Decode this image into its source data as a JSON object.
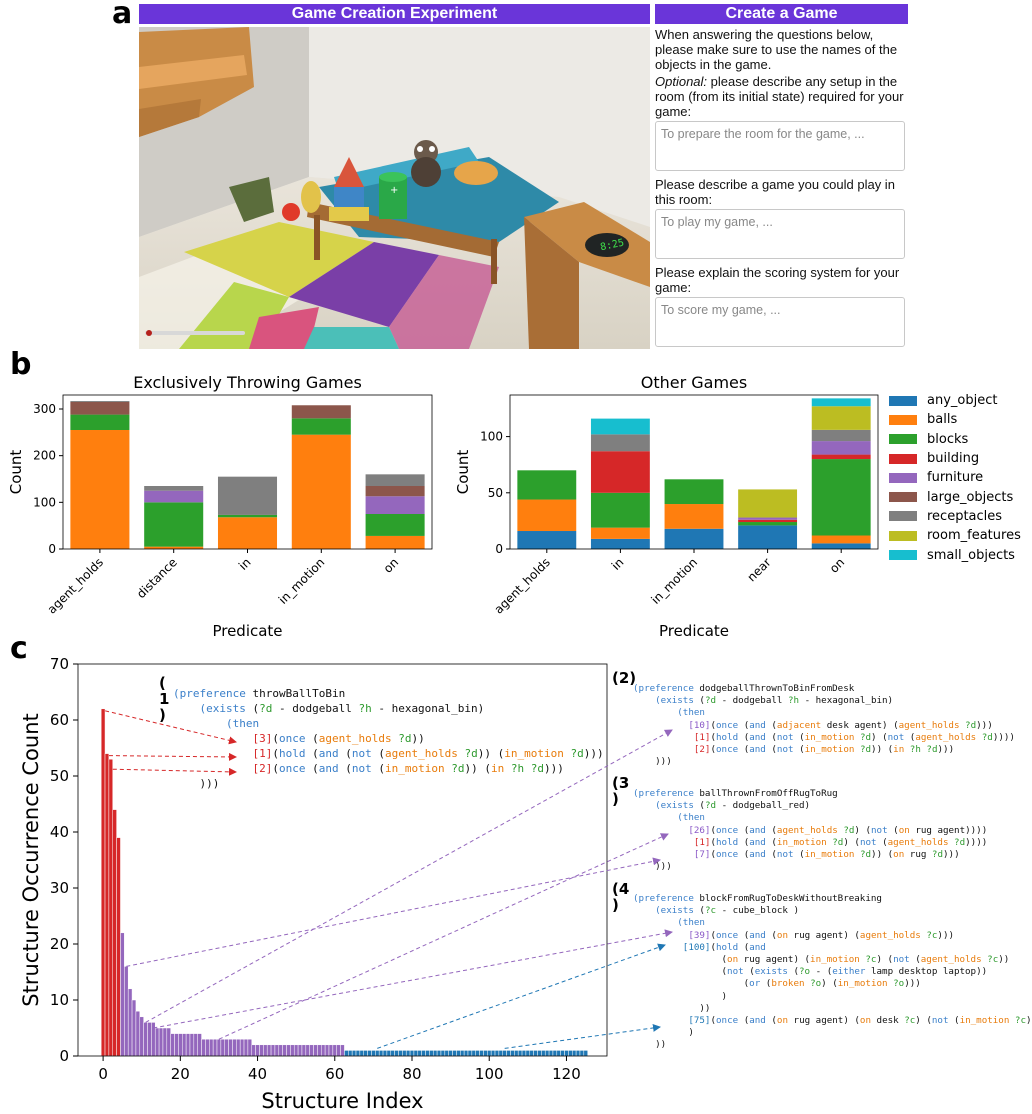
{
  "panel_letters": {
    "a": "a",
    "b": "b",
    "c": "c"
  },
  "panel_a": {
    "left_header": "Game Creation Experiment",
    "right_header": "Create a Game",
    "instructions": "When answering the questions below, please make sure to use the names of the objects in the game.",
    "setup_optional": "Optional:",
    "setup_prompt": "please describe any setup in the room (from its initial state) required for your game:",
    "setup_placeholder": "To prepare the room for the game, ...",
    "game_prompt": "Please describe a game you could play in this room:",
    "game_placeholder": "To play my game, ...",
    "scoring_prompt": "Please explain the scoring system for your game:",
    "scoring_placeholder": "To score my game, ...",
    "clock_text": "8:25"
  },
  "panel_b": {
    "legend": [
      {
        "name": "any_object",
        "color": "#1f77b4"
      },
      {
        "name": "balls",
        "color": "#ff7f0e"
      },
      {
        "name": "blocks",
        "color": "#2ca02c"
      },
      {
        "name": "building",
        "color": "#d62728"
      },
      {
        "name": "furniture",
        "color": "#9467bd"
      },
      {
        "name": "large_objects",
        "color": "#8c564b"
      },
      {
        "name": "receptacles",
        "color": "#7f7f7f"
      },
      {
        "name": "room_features",
        "color": "#bcbd22"
      },
      {
        "name": "small_objects",
        "color": "#17becf"
      }
    ]
  },
  "chart_data": [
    {
      "type": "bar",
      "stacked": true,
      "title": "Exclusively Throwing Games",
      "xlabel": "Predicate",
      "ylabel": "Count",
      "ylim": [
        0,
        330
      ],
      "yticks": [
        0,
        100,
        200,
        300
      ],
      "categories": [
        "agent_holds",
        "distance",
        "in",
        "in_motion",
        "on"
      ],
      "series": [
        {
          "name": "any_object",
          "values": [
            0,
            0,
            0,
            0,
            0
          ]
        },
        {
          "name": "balls",
          "values": [
            255,
            5,
            68,
            245,
            28
          ]
        },
        {
          "name": "blocks",
          "values": [
            33,
            95,
            5,
            35,
            47
          ]
        },
        {
          "name": "building",
          "values": [
            0,
            0,
            0,
            0,
            0
          ]
        },
        {
          "name": "furniture",
          "values": [
            0,
            25,
            0,
            0,
            38
          ]
        },
        {
          "name": "large_objects",
          "values": [
            27,
            0,
            0,
            28,
            22
          ]
        },
        {
          "name": "receptacles",
          "values": [
            2,
            10,
            82,
            0,
            25
          ]
        },
        {
          "name": "room_features",
          "values": [
            0,
            0,
            0,
            0,
            0
          ]
        },
        {
          "name": "small_objects",
          "values": [
            0,
            0,
            0,
            0,
            0
          ]
        }
      ]
    },
    {
      "type": "bar",
      "stacked": true,
      "title": "Other Games",
      "xlabel": "Predicate",
      "ylabel": "Count",
      "ylim": [
        0,
        137
      ],
      "yticks": [
        0,
        50,
        100
      ],
      "categories": [
        "agent_holds",
        "in",
        "in_motion",
        "near",
        "on"
      ],
      "series": [
        {
          "name": "any_object",
          "values": [
            16,
            9,
            18,
            21,
            5
          ]
        },
        {
          "name": "balls",
          "values": [
            28,
            10,
            22,
            0,
            7
          ]
        },
        {
          "name": "blocks",
          "values": [
            26,
            31,
            22,
            3,
            68
          ]
        },
        {
          "name": "building",
          "values": [
            0,
            37,
            0,
            2,
            4
          ]
        },
        {
          "name": "furniture",
          "values": [
            0,
            0,
            0,
            2,
            12
          ]
        },
        {
          "name": "large_objects",
          "values": [
            0,
            0,
            0,
            0,
            0
          ]
        },
        {
          "name": "receptacles",
          "values": [
            0,
            15,
            0,
            0,
            10
          ]
        },
        {
          "name": "room_features",
          "values": [
            0,
            0,
            0,
            25,
            21
          ]
        },
        {
          "name": "small_objects",
          "values": [
            0,
            14,
            0,
            0,
            7
          ]
        }
      ]
    },
    {
      "type": "bar",
      "title": "",
      "xlabel": "Structure Index",
      "ylabel": "Structure Occurrence Count",
      "xlim": [
        -6.5,
        130.5
      ],
      "ylim": [
        0,
        70
      ],
      "xticks": [
        0,
        20,
        40,
        60,
        80,
        100,
        120
      ],
      "yticks": [
        0,
        10,
        20,
        30,
        40,
        50,
        60,
        70
      ],
      "groups": [
        {
          "name": "red",
          "color": "#d62728",
          "start": 0,
          "values": [
            62,
            54,
            53,
            44,
            39
          ]
        },
        {
          "name": "purple",
          "color": "#9467bd",
          "start": 5,
          "values": [
            22,
            16,
            12,
            10,
            8,
            7,
            6,
            6,
            6,
            5,
            5,
            5,
            5,
            4,
            4,
            4,
            4,
            4,
            4,
            4,
            4,
            3,
            3,
            3,
            3,
            3,
            3,
            3,
            3,
            3,
            3,
            3,
            3,
            3,
            2,
            2,
            2,
            2,
            2,
            2,
            2,
            2,
            2,
            2,
            2,
            2,
            2,
            2,
            2,
            2,
            2,
            2,
            2,
            2,
            2,
            2,
            2,
            2
          ]
        },
        {
          "name": "blue",
          "color": "#1f77b4",
          "start": 63,
          "values": [
            1,
            1,
            1,
            1,
            1,
            1,
            1,
            1,
            1,
            1,
            1,
            1,
            1,
            1,
            1,
            1,
            1,
            1,
            1,
            1,
            1,
            1,
            1,
            1,
            1,
            1,
            1,
            1,
            1,
            1,
            1,
            1,
            1,
            1,
            1,
            1,
            1,
            1,
            1,
            1,
            1,
            1,
            1,
            1,
            1,
            1,
            1,
            1,
            1,
            1,
            1,
            1,
            1,
            1,
            1,
            1,
            1,
            1,
            1,
            1,
            1,
            1,
            1
          ]
        }
      ]
    }
  ],
  "panel_c_code": {
    "label1": "(\n1\n)",
    "label2": "(2)",
    "label3": "(3\n)",
    "label4": "(4\n)",
    "p1": [
      "(preference throwBallToBin",
      "(exists (?d - dodgeball ?h - hexagonal_bin)",
      "(then",
      "[3](once (agent_holds ?d))",
      "[1](hold (and (not (agent_holds ?d)) (in_motion ?d)))",
      "[2](once (and (not (in_motion ?d)) (in ?h ?d)))",
      ")))"
    ],
    "p2": [
      "(preference dodgeballThrownToBinFromDesk",
      "(exists (?d - dodgeball ?h - hexagonal_bin)",
      "(then",
      "[10](once (and (adjacent desk agent) (agent_holds ?d)))",
      "[1](hold (and (not (in_motion ?d) (not (agent_holds ?d))))",
      "[2](once (and (not (in_motion ?d)) (in ?h ?d)))",
      ")))"
    ],
    "p3": [
      "(preference ballThrownFromOffRugToRug",
      "(exists (?d - dodgeball_red)",
      "(then",
      "[26](once (and (agent_holds ?d) (not (on rug agent))))",
      "[1](hold (and (in_motion ?d) (not (agent_holds ?d))))",
      "[7](once (and (not (in_motion ?d)) (on rug ?d)))",
      ")))"
    ],
    "p4": [
      "(preference blockFromRugToDeskWithoutBreaking",
      "(exists (?c - cube_block )",
      "(then",
      "[39](once (and (on rug agent) (agent_holds ?c)))",
      "[100](hold (and",
      "(on rug agent) (in_motion ?c) (not (agent_holds ?c))",
      "(not (exists (?o - (either lamp desktop laptop))",
      "(or (broken ?o) (in_motion ?o)))",
      ")",
      "))",
      "[75](once (and (on rug agent) (on desk ?c) (not (in_motion ?c)",
      ")",
      "))"
    ]
  }
}
